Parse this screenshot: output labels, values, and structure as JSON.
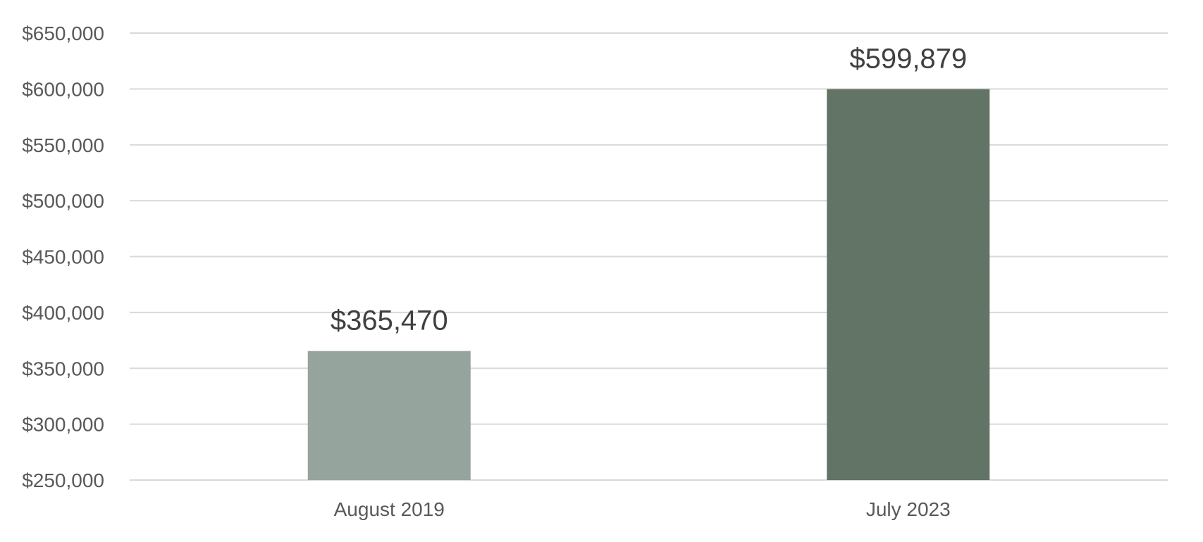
{
  "chart_data": {
    "type": "bar",
    "categories": [
      "August 2019",
      "July 2023"
    ],
    "values": [
      365470,
      599879
    ],
    "data_labels": [
      "$365,470",
      "$599,879"
    ],
    "bar_colors": [
      "#95a59d",
      "#627466"
    ],
    "ylim": [
      250000,
      650000
    ],
    "yticks": [
      250000,
      300000,
      350000,
      400000,
      450000,
      500000,
      550000,
      600000,
      650000
    ],
    "ytick_labels": [
      "$250,000",
      "$300,000",
      "$350,000",
      "$400,000",
      "$450,000",
      "$500,000",
      "$550,000",
      "$600,000",
      "$650,000"
    ],
    "grid": true,
    "legend": "none",
    "title": "",
    "xlabel": "",
    "ylabel": ""
  }
}
